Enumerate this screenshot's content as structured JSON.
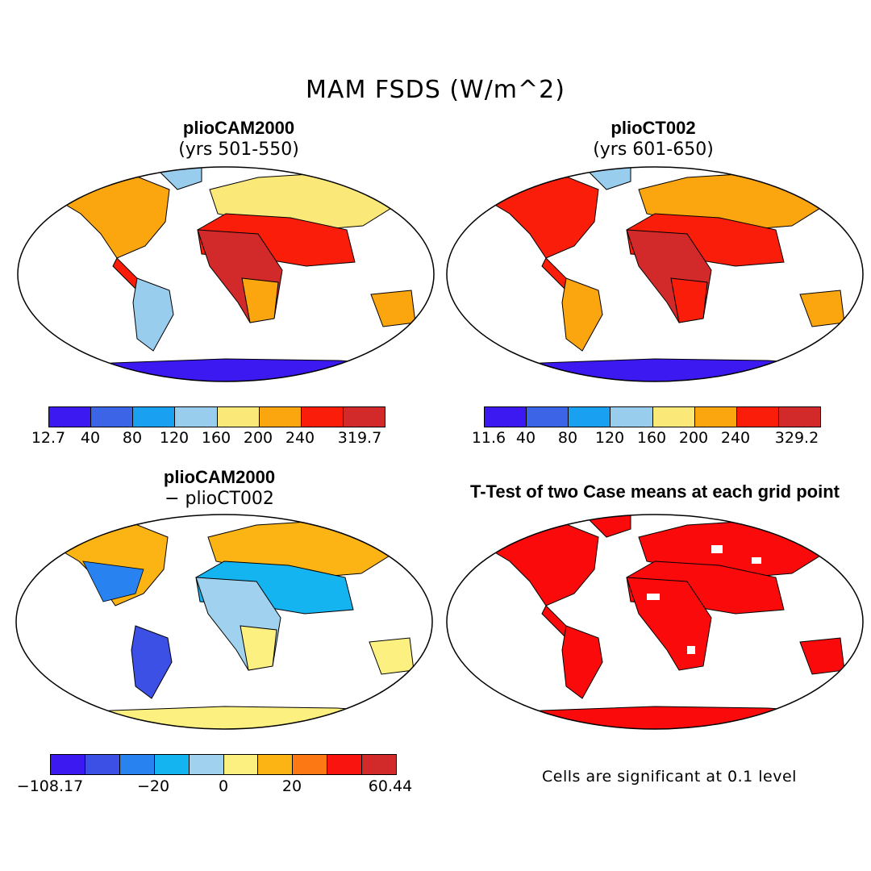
{
  "title": "MAM FSDS (W/m^2)",
  "panels": {
    "p1": {
      "title": "plioCAM2000",
      "subtitle": "(yrs 501-550)",
      "colorbar": {
        "colors": [
          "#3c19f0",
          "#3c64e6",
          "#1aa0f0",
          "#99cdee",
          "#fae878",
          "#fca60f",
          "#fa1e0a",
          "#d22a2a"
        ],
        "labels": [
          "12.7",
          "40",
          "80",
          "120",
          "160",
          "200",
          "240",
          "319.7"
        ]
      }
    },
    "p2": {
      "title": "plioCT002",
      "subtitle": "(yrs 601-650)",
      "colorbar": {
        "colors": [
          "#3c19f0",
          "#3c64e6",
          "#1aa0f0",
          "#99cdee",
          "#fae878",
          "#fca60f",
          "#fa1e0a",
          "#d22a2a"
        ],
        "labels": [
          "11.6",
          "40",
          "80",
          "120",
          "160",
          "200",
          "240",
          "329.2"
        ]
      }
    },
    "p3": {
      "title": "plioCAM2000",
      "subtitle": "− plioCT002",
      "colorbar": {
        "colors": [
          "#3c19f0",
          "#3c50e6",
          "#2882f0",
          "#14b4f0",
          "#a0d2f0",
          "#fcf080",
          "#fcb414",
          "#fc7814",
          "#fa1410",
          "#d22a2a"
        ],
        "labels": [
          "−108.17",
          "−20",
          "0",
          "20",
          "60.44"
        ]
      }
    },
    "p4": {
      "title": "T-Test of two Case means at each grid point",
      "note": "Cells are significant at 0.1 level"
    }
  }
}
